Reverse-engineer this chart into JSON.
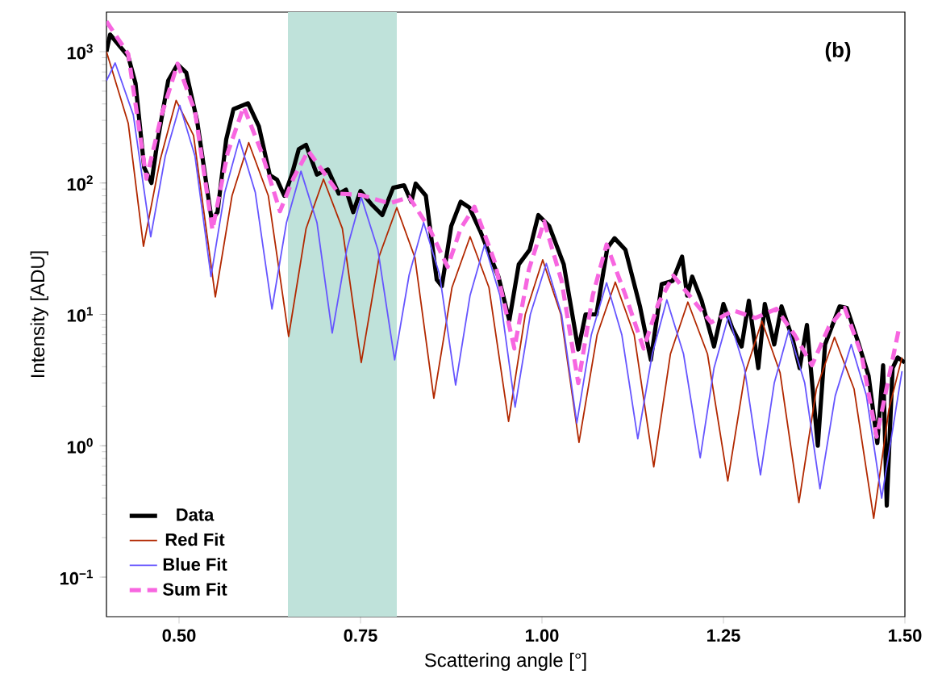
{
  "chart_data": {
    "type": "line",
    "xlabel": "Scattering angle [°]",
    "ylabel": "Intensity [ADU]",
    "annotations": [
      "(b)"
    ],
    "log": "y",
    "xlim": [
      0.4,
      1.5
    ],
    "ylim": [
      0.05,
      2000
    ],
    "xticks": [
      {
        "value": 0.5,
        "label": "0.50"
      },
      {
        "value": 0.75,
        "label": "0.75"
      },
      {
        "value": 1.0,
        "label": "1.00"
      },
      {
        "value": 1.25,
        "label": "1.25"
      },
      {
        "value": 1.5,
        "label": "1.50"
      }
    ],
    "yticks": [
      {
        "value": 0.1,
        "label": "10$^{−1}$"
      },
      {
        "value": 1,
        "label": "10$^{0}$"
      },
      {
        "value": 10,
        "label": "10$^{1}$"
      },
      {
        "value": 100,
        "label": "10$^{2}$"
      },
      {
        "value": 1000,
        "label": "10$^{3}$"
      }
    ],
    "bands": [
      {
        "axis": "x",
        "from": 0.65,
        "to": 0.8,
        "color": "#bfe2da"
      }
    ],
    "legend": "bottom left",
    "series": [
      {
        "name": "Data",
        "color": "#000000",
        "line_style": "solid",
        "x": [
          0.4,
          0.405,
          0.43,
          0.44,
          0.452,
          0.462,
          0.47,
          0.485,
          0.498,
          0.51,
          0.525,
          0.545,
          0.553,
          0.565,
          0.575,
          0.595,
          0.61,
          0.625,
          0.635,
          0.645,
          0.655,
          0.665,
          0.675,
          0.69,
          0.705,
          0.72,
          0.73,
          0.74,
          0.75,
          0.765,
          0.78,
          0.795,
          0.81,
          0.82,
          0.826,
          0.84,
          0.855,
          0.862,
          0.875,
          0.888,
          0.9,
          0.915,
          0.94,
          0.955,
          0.968,
          0.983,
          0.995,
          1.01,
          1.03,
          1.05,
          1.06,
          1.075,
          1.09,
          1.1,
          1.115,
          1.135,
          1.15,
          1.165,
          1.18,
          1.193,
          1.2,
          1.207,
          1.22,
          1.237,
          1.25,
          1.262,
          1.275,
          1.285,
          1.298,
          1.307,
          1.32,
          1.33,
          1.345,
          1.355,
          1.365,
          1.38,
          1.39,
          1.41,
          1.42,
          1.435,
          1.45,
          1.462,
          1.47,
          1.475,
          1.483,
          1.49,
          1.5
        ],
        "values": [
          1000,
          1350,
          920,
          575,
          131,
          100,
          203,
          600,
          800,
          690,
          295,
          52,
          60,
          215,
          365,
          405,
          270,
          115,
          106,
          80,
          114,
          181,
          195,
          116,
          127,
          83,
          89,
          60,
          87,
          69,
          57,
          92,
          96,
          72,
          99,
          80,
          18.4,
          16.4,
          47,
          72,
          65,
          43,
          19.4,
          9,
          24,
          31,
          57,
          47,
          24,
          5.4,
          10,
          10,
          32,
          38,
          31,
          11.5,
          4.5,
          17,
          18,
          27.5,
          13.9,
          19.4,
          12.7,
          5.7,
          12,
          7.9,
          5.7,
          12.7,
          3.9,
          12,
          5.9,
          11.5,
          6.6,
          3.9,
          8.3,
          1.0,
          5.9,
          11.5,
          11.2,
          6.3,
          3.4,
          1.05,
          4.1,
          0.35,
          3.9,
          4.7,
          4.3
        ]
      },
      {
        "name": "Red Fit",
        "color": "#b22800",
        "line_style": "solid",
        "x": [
          0.4,
          0.43,
          0.451,
          0.474,
          0.496,
          0.52,
          0.55,
          0.573,
          0.596,
          0.623,
          0.651,
          0.675,
          0.699,
          0.725,
          0.751,
          0.776,
          0.8,
          0.825,
          0.851,
          0.876,
          0.901,
          0.927,
          0.954,
          0.977,
          1.001,
          1.026,
          1.051,
          1.076,
          1.101,
          1.127,
          1.154,
          1.177,
          1.201,
          1.228,
          1.256,
          1.28,
          1.303,
          1.328,
          1.354,
          1.378,
          1.403,
          1.43,
          1.457,
          1.478,
          1.496
        ],
        "values": [
          1000,
          285,
          33,
          150,
          425,
          230,
          13.6,
          80,
          203,
          80,
          6.8,
          45,
          107,
          45,
          4.3,
          28,
          65,
          27,
          2.3,
          16,
          39,
          16,
          1.53,
          10,
          26,
          10,
          1.06,
          7,
          17.6,
          7,
          0.69,
          5,
          12.4,
          5,
          0.54,
          3.6,
          8.9,
          3.6,
          0.37,
          2.7,
          6.7,
          2.7,
          0.28,
          1.9,
          4.7
        ]
      },
      {
        "name": "Blue Fit",
        "color": "#6655ff",
        "line_style": "solid",
        "x": [
          0.4,
          0.412,
          0.437,
          0.461,
          0.481,
          0.501,
          0.522,
          0.544,
          0.563,
          0.583,
          0.605,
          0.628,
          0.648,
          0.668,
          0.69,
          0.711,
          0.731,
          0.751,
          0.774,
          0.797,
          0.817,
          0.837,
          0.859,
          0.881,
          0.901,
          0.921,
          0.942,
          0.963,
          0.984,
          1.006,
          1.027,
          1.048,
          1.068,
          1.089,
          1.11,
          1.132,
          1.152,
          1.172,
          1.195,
          1.218,
          1.237,
          1.257,
          1.279,
          1.301,
          1.32,
          1.34,
          1.362,
          1.383,
          1.404,
          1.426,
          1.447,
          1.468,
          1.496
        ],
        "values": [
          600,
          820,
          330,
          39,
          160,
          390,
          160,
          19.4,
          85,
          215,
          85,
          11,
          50,
          123,
          50,
          7.2,
          31,
          78,
          31,
          4.5,
          20,
          50,
          20,
          2.9,
          14,
          34,
          14,
          1.97,
          10,
          24.4,
          10,
          1.49,
          7,
          17.4,
          7,
          1.13,
          5,
          12.9,
          5,
          0.81,
          3.9,
          9.7,
          3.9,
          0.6,
          3,
          7.6,
          3,
          0.47,
          2.4,
          5.9,
          2.4,
          0.4,
          3.7
        ]
      },
      {
        "name": "Sum Fit",
        "color": "#f766e0",
        "line_style": "dashed",
        "x": [
          0.4,
          0.43,
          0.455,
          0.476,
          0.498,
          0.522,
          0.546,
          0.567,
          0.589,
          0.614,
          0.639,
          0.658,
          0.678,
          0.72,
          0.751,
          0.79,
          0.817,
          0.845,
          0.87,
          0.888,
          0.907,
          0.935,
          0.962,
          0.982,
          1.003,
          1.027,
          1.05,
          1.07,
          1.089,
          1.115,
          1.14,
          1.16,
          1.181,
          1.233,
          1.264,
          1.294,
          1.323,
          1.348,
          1.372,
          1.395,
          1.417,
          1.44,
          1.461,
          1.492
        ],
        "values": [
          1700,
          960,
          108,
          330,
          810,
          350,
          44,
          170,
          380,
          170,
          61,
          110,
          176,
          83,
          81,
          70,
          78,
          45,
          23,
          45,
          66,
          25,
          5.5,
          22,
          51,
          18,
          3.0,
          14,
          34,
          14,
          5.5,
          12,
          19.7,
          8.7,
          10.7,
          9.4,
          11,
          7,
          4.1,
          8,
          11.2,
          5,
          1.17,
          7.9
        ]
      }
    ]
  }
}
